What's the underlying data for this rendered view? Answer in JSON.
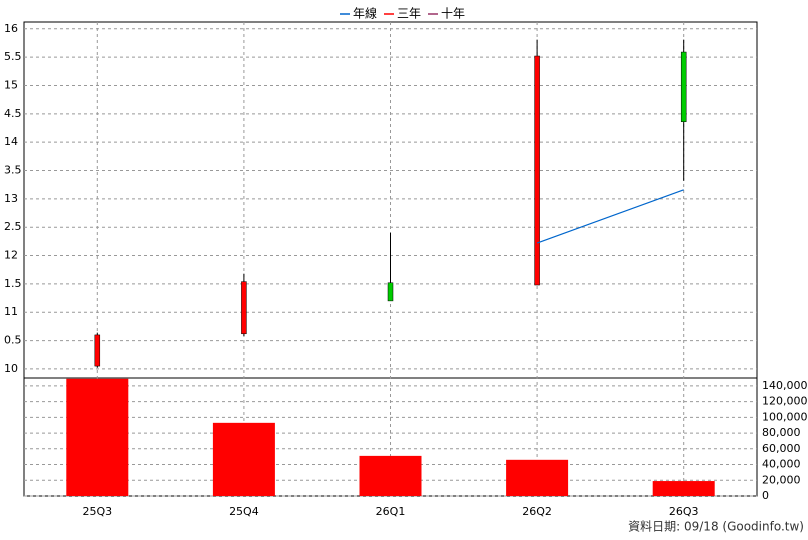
{
  "chart_data": {
    "type": "candlestick",
    "categories": [
      "25Q3",
      "25Q4",
      "26Q1",
      "26Q2",
      "26Q3"
    ],
    "open": [
      10.05,
      10.62,
      11.52,
      11.48,
      15.59
    ],
    "high": [
      10.64,
      11.68,
      12.4,
      15.81,
      15.81
    ],
    "low": [
      10.02,
      10.58,
      11.2,
      11.48,
      13.32
    ],
    "close": [
      10.6,
      11.54,
      11.2,
      15.52,
      14.36
    ],
    "up_color": "#ff0000",
    "down_color": "#00cc00",
    "series": [
      {
        "name": "年線",
        "color": "#0066cc",
        "values": [
          null,
          null,
          null,
          12.22,
          13.16
        ]
      },
      {
        "name": "三年",
        "color": "#ff0000",
        "values": [
          null,
          null,
          null,
          null,
          null
        ]
      },
      {
        "name": "十年",
        "color": "#993366",
        "values": [
          null,
          null,
          null,
          null,
          null
        ]
      }
    ],
    "ylim": [
      9.84,
      16.12
    ],
    "yticks": [
      16,
      {
        "value": 15.5,
        "label": "5.5"
      },
      15,
      {
        "value": 14.5,
        "label": "4.5"
      },
      14,
      {
        "value": 13.5,
        "label": "3.5"
      },
      13,
      {
        "value": 12.5,
        "label": "2.5"
      },
      12,
      {
        "value": 11.5,
        "label": "1.5"
      },
      11,
      {
        "value": 10.5,
        "label": "0.5"
      },
      10
    ],
    "volume": {
      "color": "#ff0000",
      "values": [
        149000,
        93000,
        51000,
        46000,
        19000
      ],
      "ylim": [
        0,
        150000
      ],
      "yticks": [
        0,
        {
          "value": 20000,
          "label": "20,000"
        },
        {
          "value": 40000,
          "label": "40,000"
        },
        {
          "value": 60000,
          "label": "60,000"
        },
        {
          "value": 80000,
          "label": "80,000"
        },
        {
          "value": 100000,
          "label": "100,000"
        },
        {
          "value": 120000,
          "label": "120,000"
        },
        {
          "value": 140000,
          "label": "140,000"
        }
      ]
    },
    "grid": true,
    "footnote": "資料日期: 09/18 (Goodinfo.tw)"
  }
}
